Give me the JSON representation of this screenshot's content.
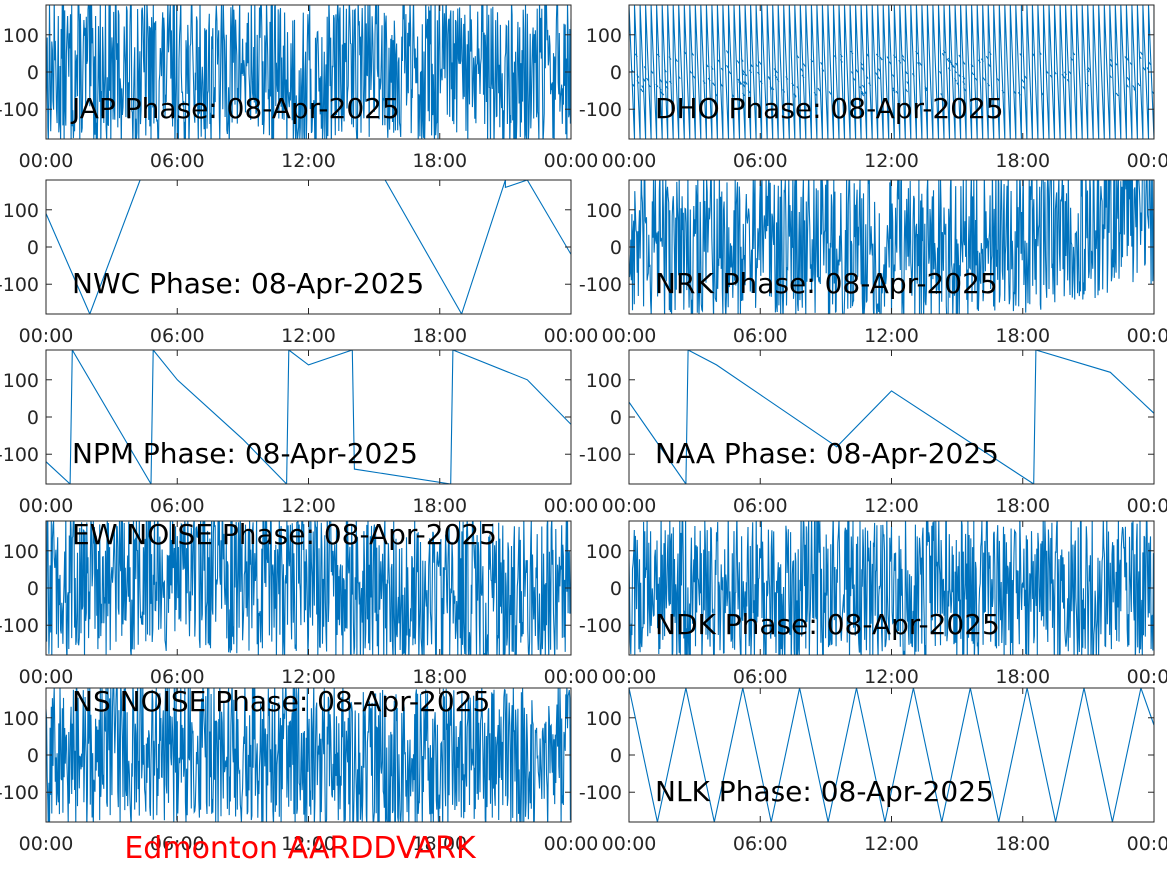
{
  "footer": {
    "label": "Edmonton AARDDVARK",
    "color": "#ff0000"
  },
  "colors": {
    "line": "#0072bd",
    "axis": "#262626",
    "background": "#ffffff"
  },
  "chart_data": [
    {
      "type": "line",
      "title": "JAP Phase: 08-Apr-2025",
      "x_ticks": [
        "00:00",
        "06:00",
        "12:00",
        "18:00",
        "00:00"
      ],
      "y_ticks": [
        "100",
        "0",
        "-100"
      ],
      "xlim": [
        0,
        24
      ],
      "ylim": [
        -180,
        180
      ],
      "pattern": "dense-noise",
      "series": [
        {
          "x": [
            0,
            2,
            4,
            6,
            7.5,
            9,
            12,
            15,
            18,
            21,
            24
          ],
          "y": [
            0,
            0,
            0,
            0,
            0,
            20,
            -30,
            40,
            0,
            -20,
            10
          ]
        }
      ]
    },
    {
      "type": "line",
      "title": "DHO Phase: 08-Apr-2025",
      "x_ticks": [
        "00:00",
        "06:00",
        "12:00",
        "18:00",
        "00:00"
      ],
      "y_ticks": [
        "100",
        "0",
        "-100"
      ],
      "xlim": [
        0,
        24
      ],
      "ylim": [
        -180,
        180
      ],
      "pattern": "fast-sawtooth",
      "series": [
        {
          "x": [
            0,
            24
          ],
          "y": [
            180,
            -180
          ]
        }
      ]
    },
    {
      "type": "line",
      "title": "NWC Phase: 08-Apr-2025",
      "x_ticks": [
        "00:00",
        "06:00",
        "12:00",
        "18:00",
        "00:00"
      ],
      "y_ticks": [
        "100",
        "0",
        "-100"
      ],
      "xlim": [
        0,
        24
      ],
      "ylim": [
        -180,
        180
      ],
      "pattern": "slow-sawtooth",
      "series": [
        {
          "x": [
            0,
            2,
            4.3,
            6,
            7.5,
            9,
            10.5,
            12.3,
            15.5,
            19,
            21,
            22,
            24
          ],
          "y": [
            90,
            -180,
            180,
            180,
            180,
            180,
            180,
            180,
            180,
            -180,
            160,
            180,
            -20
          ]
        }
      ]
    },
    {
      "type": "line",
      "title": "NRK Phase: 08-Apr-2025",
      "x_ticks": [
        "00:00",
        "06:00",
        "12:00",
        "18:00",
        "00:00"
      ],
      "y_ticks": [
        "100",
        "0",
        "-100"
      ],
      "xlim": [
        0,
        24
      ],
      "ylim": [
        -180,
        180
      ],
      "pattern": "dense-noise",
      "series": [
        {
          "x": [
            0,
            6,
            12,
            18,
            24
          ],
          "y": [
            0,
            20,
            -10,
            30,
            100
          ]
        }
      ]
    },
    {
      "type": "line",
      "title": "NPM Phase: 08-Apr-2025",
      "x_ticks": [
        "00:00",
        "06:00",
        "12:00",
        "18:00",
        "00:00"
      ],
      "y_ticks": [
        "100",
        "0",
        "-100"
      ],
      "xlim": [
        0,
        24
      ],
      "ylim": [
        -180,
        180
      ],
      "pattern": "slow-drift",
      "series": [
        {
          "x": [
            0,
            1.1,
            1.2,
            4.8,
            4.9,
            6,
            9,
            11,
            11.1,
            12,
            14,
            14.1,
            18.5,
            18.6,
            22,
            24
          ],
          "y": [
            -120,
            -180,
            180,
            -180,
            180,
            100,
            -60,
            -180,
            180,
            140,
            180,
            -140,
            -180,
            180,
            100,
            -20
          ]
        }
      ]
    },
    {
      "type": "line",
      "title": "NAA Phase: 08-Apr-2025",
      "x_ticks": [
        "00:00",
        "06:00",
        "12:00",
        "18:00",
        "00:00"
      ],
      "y_ticks": [
        "100",
        "0",
        "-100"
      ],
      "xlim": [
        0,
        24
      ],
      "ylim": [
        -180,
        180
      ],
      "pattern": "slow-drift",
      "series": [
        {
          "x": [
            0,
            2.6,
            2.7,
            4,
            6,
            9.5,
            12,
            18.5,
            18.6,
            22,
            24
          ],
          "y": [
            40,
            -180,
            180,
            140,
            60,
            -80,
            70,
            -180,
            180,
            120,
            10
          ]
        }
      ]
    },
    {
      "type": "line",
      "title": "EW NOISE Phase: 08-Apr-2025",
      "x_ticks": [
        "00:00",
        "06:00",
        "12:00",
        "18:00",
        "00:00"
      ],
      "y_ticks": [
        "100",
        "0",
        "-100"
      ],
      "xlim": [
        0,
        24
      ],
      "ylim": [
        -180,
        180
      ],
      "pattern": "dense-noise",
      "series": [
        {
          "x": [
            0,
            6,
            12,
            18,
            24
          ],
          "y": [
            0,
            40,
            10,
            -20,
            0
          ]
        }
      ]
    },
    {
      "type": "line",
      "title": "NDK Phase: 08-Apr-2025",
      "x_ticks": [
        "00:00",
        "06:00",
        "12:00",
        "18:00",
        "00:00"
      ],
      "y_ticks": [
        "100",
        "0",
        "-100"
      ],
      "xlim": [
        0,
        24
      ],
      "ylim": [
        -180,
        180
      ],
      "pattern": "dense-noise",
      "series": [
        {
          "x": [
            0,
            6,
            12,
            18,
            24
          ],
          "y": [
            0,
            0,
            0,
            0,
            0
          ]
        }
      ]
    },
    {
      "type": "line",
      "title": "NS NOISE Phase: 08-Apr-2025",
      "x_ticks": [
        "00:00",
        "06:00",
        "12:00",
        "18:00",
        "00:00"
      ],
      "y_ticks": [
        "100",
        "0",
        "-100"
      ],
      "xlim": [
        0,
        24
      ],
      "ylim": [
        -180,
        180
      ],
      "pattern": "dense-noise",
      "series": [
        {
          "x": [
            0,
            6,
            12,
            18,
            24
          ],
          "y": [
            0,
            30,
            0,
            -30,
            0
          ]
        }
      ]
    },
    {
      "type": "line",
      "title": "NLK Phase: 08-Apr-2025",
      "x_ticks": [
        "00:00",
        "06:00",
        "12:00",
        "18:00",
        "00:00"
      ],
      "y_ticks": [
        "100",
        "0",
        "-100"
      ],
      "xlim": [
        0,
        24
      ],
      "ylim": [
        -180,
        180
      ],
      "pattern": "slow-sawtooth",
      "series": [
        {
          "x": [
            0,
            1.3,
            2.6,
            3.9,
            5.2,
            6.5,
            7.8,
            9.1,
            10.4,
            11.7,
            13,
            14.3,
            15.6,
            16.9,
            18.2,
            19.5,
            20.8,
            22.1,
            23.4,
            24
          ],
          "y": [
            180,
            -180,
            180,
            -180,
            180,
            -180,
            180,
            -180,
            180,
            -180,
            180,
            -180,
            180,
            -180,
            180,
            -180,
            180,
            -180,
            180,
            80
          ]
        }
      ]
    }
  ]
}
